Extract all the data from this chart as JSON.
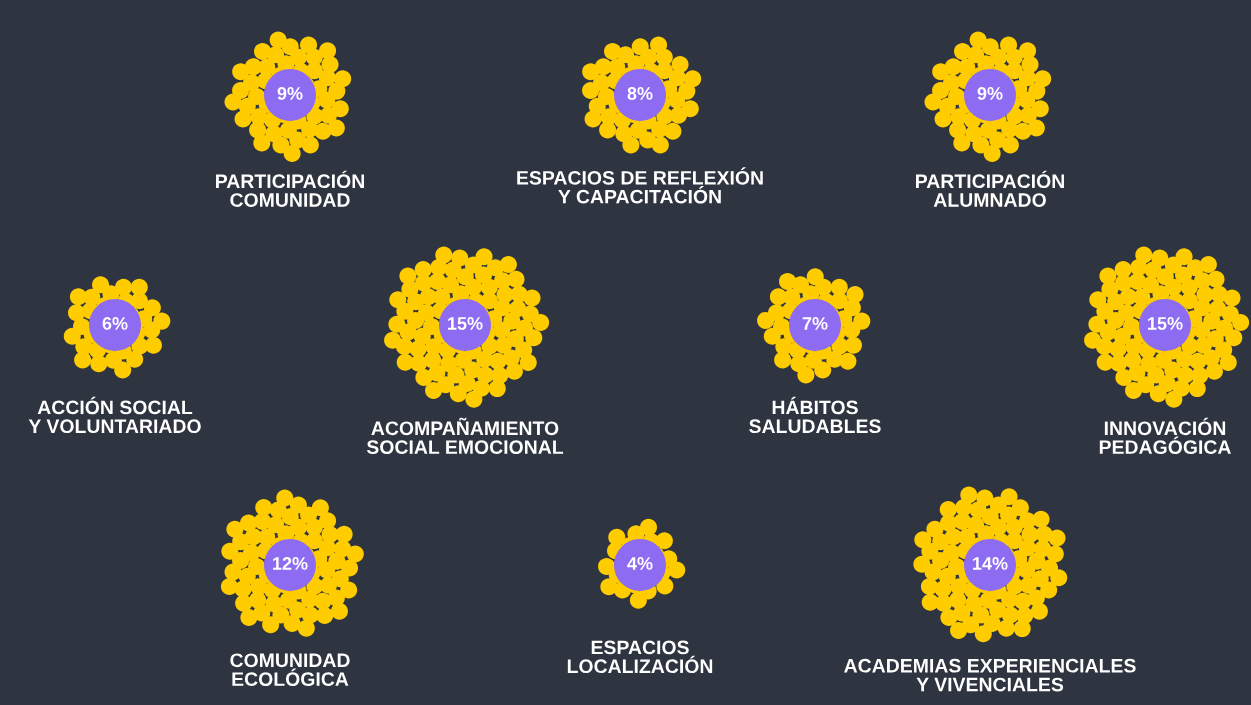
{
  "chart_data": {
    "type": "other",
    "categories": [
      "PARTICIPACIÓN\nCOMUNIDAD",
      "ESPACIOS DE REFLEXIÓN\nY CAPACITACIÓN",
      "PARTICIPACIÓN\nALUMNADO",
      "ACCIÓN SOCIAL\nY VOLUNTARIADO",
      "ACOMPAÑAMIENTO\nSOCIAL EMOCIONAL",
      "HÁBITOS\nSALUDABLES",
      "INNOVACIÓN\nPEDAGÓGICA",
      "COMUNIDAD\nECOLÓGICA",
      "ESPACIOS\nLOCALIZACIÓN",
      "ACADEMIAS EXPERIENCIALES\nY VIVENCIALES"
    ],
    "values": [
      9,
      8,
      9,
      6,
      15,
      7,
      15,
      12,
      4,
      14
    ],
    "value_labels": [
      "9%",
      "8%",
      "9%",
      "6%",
      "15%",
      "7%",
      "15%",
      "12%",
      "4%",
      "14%"
    ],
    "color": "#8e6cf2"
  }
}
